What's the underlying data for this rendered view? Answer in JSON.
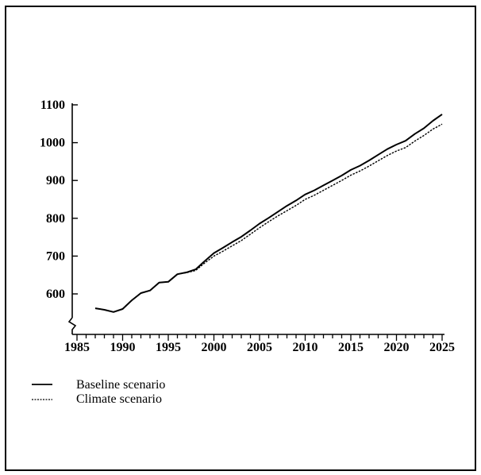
{
  "chart_data": {
    "type": "line",
    "title": "",
    "xlabel": "",
    "ylabel": "",
    "xlim": [
      1985,
      2025
    ],
    "ylim": [
      500,
      1100
    ],
    "y_axis_break": true,
    "xticks": [
      1985,
      1990,
      1995,
      2000,
      2005,
      2010,
      2015,
      2020,
      2025
    ],
    "yticks": [
      600,
      700,
      800,
      900,
      1000,
      1100
    ],
    "legend_position": "bottom-left",
    "grid": false,
    "series": [
      {
        "name": "Baseline scenario",
        "style": "solid",
        "color": "#000000",
        "x": [
          1987,
          1988,
          1989,
          1990,
          1991,
          1992,
          1993,
          1994,
          1995,
          1996,
          1997,
          1998,
          1999,
          2000,
          2001,
          2002,
          2003,
          2004,
          2005,
          2006,
          2007,
          2008,
          2009,
          2010,
          2011,
          2012,
          2013,
          2014,
          2015,
          2016,
          2017,
          2018,
          2019,
          2020,
          2021,
          2022,
          2023,
          2024,
          2025
        ],
        "values": [
          562,
          558,
          552,
          560,
          583,
          602,
          609,
          630,
          632,
          652,
          657,
          665,
          687,
          708,
          722,
          737,
          751,
          768,
          786,
          801,
          817,
          833,
          847,
          863,
          874,
          887,
          900,
          913,
          928,
          939,
          953,
          968,
          983,
          995,
          1005,
          1023,
          1038,
          1058,
          1075
        ]
      },
      {
        "name": "Climate scenario",
        "style": "dashed",
        "color": "#000000",
        "x": [
          1987,
          1988,
          1989,
          1990,
          1991,
          1992,
          1993,
          1994,
          1995,
          1996,
          1997,
          1998,
          1999,
          2000,
          2001,
          2002,
          2003,
          2004,
          2005,
          2006,
          2007,
          2008,
          2009,
          2010,
          2011,
          2012,
          2013,
          2014,
          2015,
          2016,
          2017,
          2018,
          2019,
          2020,
          2021,
          2022,
          2023,
          2024,
          2025
        ],
        "values": [
          562,
          558,
          552,
          560,
          583,
          602,
          609,
          630,
          632,
          652,
          656,
          662,
          682,
          700,
          713,
          727,
          741,
          758,
          775,
          791,
          806,
          820,
          834,
          850,
          861,
          874,
          887,
          900,
          914,
          925,
          938,
          952,
          966,
          978,
          987,
          1004,
          1019,
          1036,
          1049
        ]
      }
    ]
  },
  "legend": {
    "items": [
      {
        "label": "Baseline scenario",
        "style": "solid"
      },
      {
        "label": "Climate scenario",
        "style": "dashed"
      }
    ]
  }
}
